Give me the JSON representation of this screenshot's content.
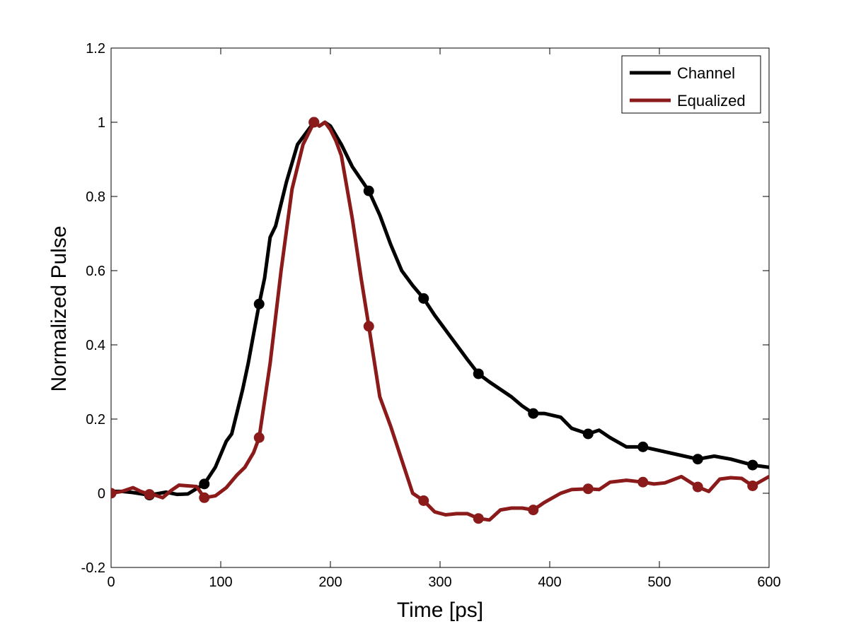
{
  "chart_data": {
    "type": "line",
    "title": "",
    "xlabel": "Time [ps]",
    "ylabel": "Normalized Pulse",
    "xlim": [
      0,
      600
    ],
    "ylim": [
      -0.2,
      1.2
    ],
    "xticks": [
      0,
      100,
      200,
      300,
      400,
      500,
      600
    ],
    "yticks": [
      -0.2,
      0,
      0.2,
      0.4,
      0.6,
      0.8,
      1,
      1.2
    ],
    "xtick_labels": [
      "0",
      "100",
      "200",
      "300",
      "400",
      "500",
      "600"
    ],
    "ytick_labels": [
      "-0.2",
      "0",
      "0.2",
      "0.4",
      "0.6",
      "0.8",
      "1",
      "1.2"
    ],
    "grid": false,
    "legend_position": "top-right",
    "series": [
      {
        "name": "Channel",
        "color": "#000000",
        "x": [
          0,
          10,
          20,
          35,
          50,
          60,
          70,
          85,
          95,
          105,
          110,
          115,
          120,
          125,
          130,
          135,
          140,
          145,
          150,
          160,
          170,
          180,
          185,
          190,
          195,
          200,
          210,
          220,
          235,
          245,
          255,
          265,
          275,
          285,
          295,
          305,
          315,
          325,
          335,
          345,
          355,
          365,
          375,
          385,
          395,
          410,
          420,
          435,
          445,
          455,
          470,
          485,
          500,
          520,
          535,
          550,
          565,
          585,
          600
        ],
        "y": [
          0.005,
          0.005,
          0.002,
          -0.005,
          0.003,
          -0.003,
          -0.002,
          0.025,
          0.07,
          0.14,
          0.16,
          0.22,
          0.28,
          0.35,
          0.43,
          0.51,
          0.58,
          0.69,
          0.72,
          0.84,
          0.94,
          0.98,
          1.0,
          0.99,
          1.0,
          0.99,
          0.94,
          0.88,
          0.815,
          0.75,
          0.67,
          0.6,
          0.56,
          0.525,
          0.48,
          0.44,
          0.4,
          0.36,
          0.322,
          0.3,
          0.28,
          0.26,
          0.235,
          0.215,
          0.215,
          0.205,
          0.175,
          0.16,
          0.17,
          0.15,
          0.125,
          0.125,
          0.115,
          0.102,
          0.092,
          0.1,
          0.092,
          0.076,
          0.07
        ],
        "markers_x": [
          35,
          85,
          135,
          185,
          235,
          285,
          335,
          385,
          435,
          485,
          535,
          585
        ],
        "markers_y": [
          -0.005,
          0.025,
          0.51,
          1.0,
          0.815,
          0.525,
          0.322,
          0.215,
          0.16,
          0.125,
          0.092,
          0.076
        ]
      },
      {
        "name": "Equalized",
        "color": "#8b1a1a",
        "x": [
          0,
          10,
          20,
          27,
          35,
          40,
          47,
          55,
          62,
          70,
          78,
          85,
          95,
          105,
          115,
          122,
          130,
          135,
          145,
          155,
          165,
          175,
          185,
          190,
          195,
          200,
          205,
          210,
          220,
          228,
          235,
          245,
          255,
          265,
          275,
          285,
          295,
          305,
          315,
          325,
          335,
          345,
          355,
          365,
          375,
          385,
          395,
          410,
          420,
          435,
          445,
          455,
          470,
          485,
          495,
          505,
          520,
          535,
          545,
          555,
          565,
          575,
          585,
          600
        ],
        "y": [
          0.0,
          0.005,
          0.015,
          0.005,
          -0.003,
          -0.005,
          -0.012,
          0.008,
          0.022,
          0.02,
          0.018,
          -0.012,
          -0.007,
          0.015,
          0.05,
          0.07,
          0.11,
          0.15,
          0.35,
          0.6,
          0.82,
          0.94,
          1.0,
          0.99,
          1.0,
          0.98,
          0.95,
          0.91,
          0.74,
          0.58,
          0.45,
          0.26,
          0.18,
          0.09,
          0.0,
          -0.02,
          -0.05,
          -0.058,
          -0.055,
          -0.055,
          -0.068,
          -0.072,
          -0.045,
          -0.04,
          -0.04,
          -0.045,
          -0.025,
          0.0,
          0.01,
          0.012,
          0.01,
          0.03,
          0.035,
          0.03,
          0.025,
          0.028,
          0.045,
          0.017,
          0.005,
          0.038,
          0.042,
          0.04,
          0.02,
          0.045
        ],
        "markers_x": [
          0,
          35,
          85,
          135,
          185,
          235,
          285,
          335,
          385,
          435,
          485,
          535,
          585
        ],
        "markers_y": [
          0.0,
          -0.003,
          -0.012,
          0.15,
          1.0,
          0.45,
          -0.02,
          -0.068,
          -0.045,
          0.012,
          0.03,
          0.017,
          0.02
        ]
      }
    ]
  }
}
